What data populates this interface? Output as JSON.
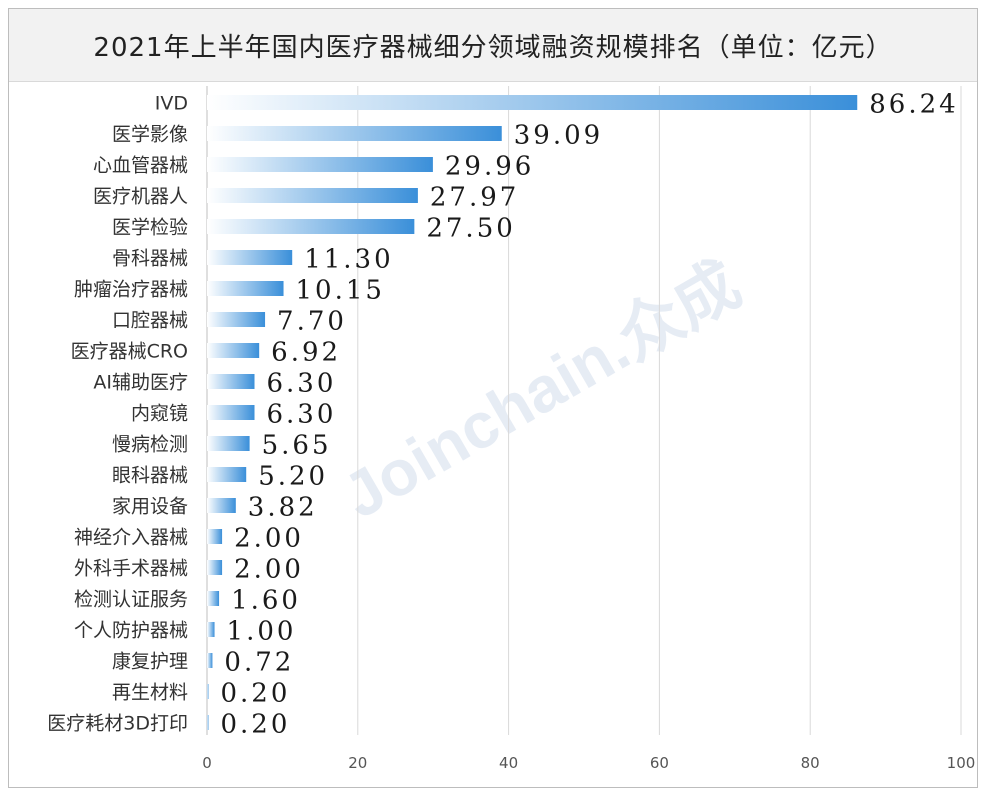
{
  "title": "2021年上半年国内医疗器械细分领域融资规模排名（单位：亿元）",
  "watermark": "Joinchain.众成",
  "colors": {
    "bar_dark": "#3a8fd9",
    "bar_light": "#ffffff",
    "grid": "#d9d9d9",
    "axis": "#bfbfbf"
  },
  "chart_data": {
    "type": "bar",
    "orientation": "horizontal",
    "title": "2021年上半年国内医疗器械细分领域融资规模排名（单位：亿元）",
    "xlabel": "",
    "ylabel": "",
    "xlim": [
      0,
      100
    ],
    "xticks": [
      0,
      20,
      40,
      60,
      80,
      100
    ],
    "grid": true,
    "legend": "none",
    "categories": [
      "IVD",
      "医学影像",
      "心血管器械",
      "医疗机器人",
      "医学检验",
      "骨科器械",
      "肿瘤治疗器械",
      "口腔器械",
      "医疗器械CRO",
      "AI辅助医疗",
      "内窥镜",
      "慢病检测",
      "眼科器械",
      "家用设备",
      "神经介入器械",
      "外科手术器械",
      "检测认证服务",
      "个人防护器械",
      "康复护理",
      "再生材料",
      "医疗耗材3D打印"
    ],
    "values": [
      86.24,
      39.09,
      29.96,
      27.97,
      27.5,
      11.3,
      10.15,
      7.7,
      6.92,
      6.3,
      6.3,
      5.65,
      5.2,
      3.82,
      2.0,
      2.0,
      1.6,
      1.0,
      0.72,
      0.2,
      0.2
    ],
    "value_labels": [
      "86.24",
      "39.09",
      "29.96",
      "27.97",
      "27.50",
      "11.30",
      "10.15",
      "7.70",
      "6.92",
      "6.30",
      "6.30",
      "5.65",
      "5.20",
      "3.82",
      "2.00",
      "2.00",
      "1.60",
      "1.00",
      "0.72",
      "0.20",
      "0.20"
    ]
  }
}
